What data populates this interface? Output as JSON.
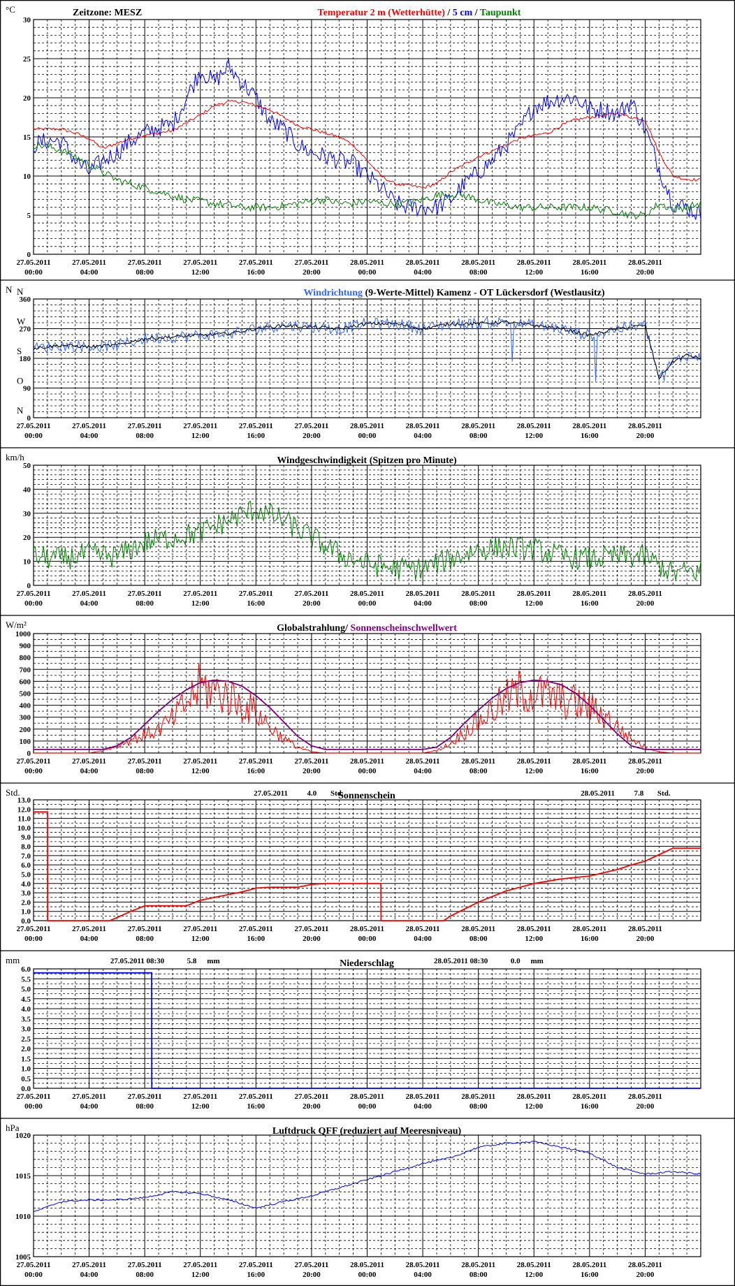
{
  "x_labels": [
    {
      "date": "27.05.2011",
      "time": "00:00"
    },
    {
      "date": "27.05.2011",
      "time": "04:00"
    },
    {
      "date": "27.05.2011",
      "time": "08:00"
    },
    {
      "date": "27.05.2011",
      "time": "12:00"
    },
    {
      "date": "27.05.2011",
      "time": "16:00"
    },
    {
      "date": "27.05.2011",
      "time": "20:00"
    },
    {
      "date": "28.05.2011",
      "time": "00:00"
    },
    {
      "date": "28.05.2011",
      "time": "04:00"
    },
    {
      "date": "28.05.2011",
      "time": "08:00"
    },
    {
      "date": "28.05.2011",
      "time": "12:00"
    },
    {
      "date": "28.05.2011",
      "time": "16:00"
    },
    {
      "date": "28.05.2011",
      "time": "20:00"
    }
  ],
  "colors": {
    "red": "#ff0000",
    "blue": "#0000ff",
    "lightblue": "#3366ff",
    "green": "#008000",
    "purple": "#800080",
    "black": "#000000"
  },
  "chart_data": [
    {
      "type": "line",
      "id": "temp",
      "unit": "°C",
      "zone": "Zeitzone: MESZ",
      "title_parts": [
        {
          "text": "Temperatur 2 m (Wetterhütte)",
          "color": "#ff0000"
        },
        {
          "text": " / ",
          "color": "#000000"
        },
        {
          "text": "5 cm",
          "color": "#0000ff"
        },
        {
          "text": " / ",
          "color": "#000000"
        },
        {
          "text": "Taupunkt",
          "color": "#008000"
        }
      ],
      "ylim": [
        0,
        30
      ],
      "yticks": [
        0,
        5,
        10,
        15,
        20,
        25,
        30
      ],
      "ytick_labels": [
        "0",
        "5",
        "10",
        "15",
        "20",
        "25",
        "30"
      ],
      "x_hours": [
        0,
        1,
        2,
        3,
        4,
        5,
        6,
        7,
        8,
        9,
        10,
        11,
        12,
        13,
        14,
        15,
        16,
        17,
        18,
        19,
        20,
        21,
        22,
        23,
        24,
        25,
        26,
        27,
        28,
        29,
        30,
        31,
        32,
        33,
        34,
        35,
        36,
        37,
        38,
        39,
        40,
        41,
        42,
        43,
        44,
        45,
        46,
        47,
        48
      ],
      "series": [
        {
          "color": "#ff0000",
          "noise": 0.2,
          "values": [
            16,
            16,
            16,
            15.5,
            14.8,
            13.5,
            14.2,
            14.8,
            15.2,
            15.5,
            15.8,
            16.8,
            17.8,
            19,
            19.5,
            19.5,
            19,
            18.5,
            17.5,
            16.5,
            16,
            15.5,
            15,
            14,
            12,
            10,
            9,
            8.8,
            8.5,
            9,
            10.5,
            11.5,
            12.5,
            13.2,
            14,
            14.8,
            15.2,
            15.5,
            16.5,
            17.2,
            17.5,
            17.8,
            18,
            17.5,
            17.2,
            13,
            10,
            9.6,
            9.5
          ]
        },
        {
          "color": "#0000ff",
          "noise": 1.2,
          "values": [
            14,
            14.5,
            14.5,
            12,
            10.5,
            12,
            13,
            14.5,
            15.5,
            16.2,
            16.5,
            20,
            23.5,
            22,
            24,
            22,
            20,
            17,
            16,
            14,
            13,
            12.5,
            12,
            11.5,
            10,
            8.5,
            6.5,
            6,
            6,
            6,
            7,
            9,
            10.5,
            12,
            14,
            16,
            19,
            19.5,
            20,
            20,
            18.5,
            18.5,
            18,
            19.5,
            16,
            11,
            6.5,
            6,
            5
          ]
        },
        {
          "color": "#008000",
          "noise": 0.5,
          "values": [
            14,
            13.8,
            13.3,
            12.5,
            11.5,
            10.5,
            9.5,
            9,
            8.5,
            8,
            7.5,
            7,
            6.8,
            6.5,
            6.3,
            6,
            6,
            6,
            6.2,
            6.5,
            6.8,
            7,
            6.5,
            6.5,
            6.8,
            6.5,
            6.5,
            6.5,
            7,
            7.5,
            7.7,
            7.5,
            7,
            6.5,
            6.3,
            6,
            6,
            6,
            6,
            6,
            6,
            5.7,
            5.5,
            5,
            5,
            6.5,
            5.8,
            6,
            6.5
          ]
        }
      ]
    },
    {
      "type": "line",
      "id": "dir",
      "unit": "N",
      "zone": "",
      "title_parts": [
        {
          "text": "Windrichtung",
          "color": "#3366ff"
        },
        {
          "text": " (9-Werte-Mittel)",
          "color": "#000000"
        },
        {
          "text": "          Kamenz - OT Lückersdorf (Westlausitz)",
          "color": "#000000"
        }
      ],
      "ylim": [
        0,
        360
      ],
      "yticks": [
        0,
        90,
        180,
        270,
        360
      ],
      "ytick_labels": [
        "0",
        "90",
        "180",
        "270",
        "360"
      ],
      "compass": [
        "N",
        "O",
        "S",
        "W",
        "N"
      ],
      "x_hours": [
        0,
        2,
        4,
        6,
        8,
        10,
        12,
        14,
        16,
        18,
        20,
        22,
        24,
        26,
        28,
        30,
        32,
        34,
        36,
        38,
        40,
        42,
        44,
        45,
        46,
        47,
        48
      ],
      "series": [
        {
          "color": "#3366ff",
          "noise": 18,
          "values": [
            210,
            220,
            215,
            220,
            240,
            245,
            250,
            255,
            270,
            280,
            275,
            270,
            285,
            285,
            270,
            285,
            285,
            290,
            280,
            270,
            250,
            270,
            280,
            120,
            170,
            190,
            180
          ]
        },
        {
          "color": "#000000",
          "noise": 5,
          "values": [
            210,
            220,
            215,
            220,
            240,
            245,
            250,
            255,
            270,
            280,
            275,
            270,
            285,
            285,
            270,
            285,
            285,
            290,
            280,
            270,
            250,
            270,
            280,
            120,
            170,
            190,
            180
          ]
        }
      ]
    },
    {
      "type": "line",
      "id": "speed",
      "unit": "km/h",
      "zone": "",
      "title_parts": [
        {
          "text": "Windgeschwindigkeit (Spitzen pro Minute)",
          "color": "#000000"
        }
      ],
      "ylim": [
        0,
        50
      ],
      "yticks": [
        0,
        10,
        20,
        30,
        40,
        50
      ],
      "ytick_labels": [
        "0",
        "10",
        "20",
        "30",
        "40",
        "50"
      ],
      "x_hours": [
        0,
        2,
        4,
        6,
        8,
        10,
        12,
        14,
        16,
        18,
        20,
        22,
        24,
        26,
        28,
        30,
        32,
        34,
        36,
        38,
        40,
        42,
        44,
        46,
        48
      ],
      "series": [
        {
          "color": "#008000",
          "noise": 5,
          "values": [
            12,
            11,
            13,
            12,
            18,
            20,
            22,
            27,
            32,
            27,
            20,
            13,
            9,
            7,
            7,
            11,
            15,
            16,
            15,
            12,
            11,
            12,
            12,
            5,
            6
          ]
        }
      ]
    },
    {
      "type": "line",
      "id": "rad",
      "unit": "W/m²",
      "zone": "",
      "title_parts": [
        {
          "text": "Globalstrahlung/ ",
          "color": "#000000"
        },
        {
          "text": "Sonnenscheinschwellwert",
          "color": "#800080"
        }
      ],
      "ylim": [
        0,
        1000
      ],
      "yticks": [
        0,
        100,
        200,
        300,
        400,
        500,
        600,
        700,
        800,
        900,
        1000
      ],
      "ytick_labels": [
        "0",
        "100",
        "200",
        "300",
        "400",
        "500",
        "600",
        "700",
        "800",
        "900",
        "1000"
      ],
      "x_hours": [
        0,
        2,
        4,
        5,
        6,
        7,
        8,
        9,
        10,
        11,
        12,
        13,
        14,
        15,
        16,
        17,
        18,
        19,
        20,
        21,
        22,
        24,
        26,
        28,
        29,
        30,
        31,
        32,
        33,
        34,
        35,
        36,
        37,
        38,
        39,
        40,
        41,
        42,
        43,
        44,
        45,
        46,
        48
      ],
      "series": [
        {
          "color": "#ff0000",
          "noise": 230,
          "values": [
            0,
            0,
            0,
            20,
            60,
            110,
            150,
            200,
            280,
            420,
            560,
            520,
            480,
            400,
            350,
            220,
            120,
            50,
            10,
            0,
            0,
            0,
            0,
            0,
            20,
            80,
            180,
            260,
            360,
            450,
            520,
            500,
            480,
            440,
            420,
            380,
            320,
            220,
            120,
            50,
            10,
            0,
            0
          ]
        },
        {
          "color": "#800080",
          "noise": 0,
          "values": [
            30,
            30,
            30,
            30,
            60,
            130,
            240,
            350,
            450,
            530,
            590,
            610,
            600,
            560,
            480,
            380,
            260,
            140,
            60,
            30,
            30,
            30,
            30,
            30,
            50,
            130,
            250,
            360,
            460,
            540,
            590,
            610,
            600,
            570,
            500,
            400,
            280,
            160,
            60,
            30,
            30,
            30,
            30
          ]
        }
      ]
    },
    {
      "type": "line",
      "id": "sun",
      "unit": "Std.",
      "zone": "",
      "title_parts": [
        {
          "text": "Sonnenschein",
          "color": "#000000"
        }
      ],
      "annotations": [
        {
          "text": "27.05.2011",
          "fx": 0.33
        },
        {
          "text": "4.0",
          "fx": 0.41
        },
        {
          "text": "Std.",
          "fx": 0.445
        },
        {
          "text": "28.05.2011",
          "fx": 0.82
        },
        {
          "text": "7.8",
          "fx": 0.9
        },
        {
          "text": "Std.",
          "fx": 0.935
        }
      ],
      "ylim": [
        0,
        13
      ],
      "yticks": [
        0,
        1,
        2,
        3,
        4,
        5,
        6,
        7,
        8,
        9,
        10,
        11,
        12,
        13
      ],
      "ytick_labels": [
        "0.0",
        "1.0",
        "2.0",
        "3.0",
        "4.0",
        "5.0",
        "6.0",
        "7.0",
        "8.0",
        "9.0",
        "10.0",
        "11.0",
        "12.0",
        "13.0"
      ],
      "x_hours": [
        0,
        1,
        1.01,
        5.5,
        7,
        8,
        11,
        12,
        13,
        14,
        15,
        16,
        17,
        19,
        20,
        21,
        23,
        24.99,
        25,
        29.5,
        30,
        32,
        34,
        36,
        38,
        40,
        42,
        43,
        44,
        45,
        46,
        48
      ],
      "series": [
        {
          "color": "#ff0000",
          "noise": 0,
          "values": [
            11.7,
            11.7,
            0,
            0,
            1,
            1.6,
            1.6,
            2.2,
            2.5,
            2.8,
            3.1,
            3.5,
            3.6,
            3.6,
            3.9,
            4,
            4,
            4,
            0,
            0,
            0.5,
            2,
            3.2,
            4,
            4.5,
            4.8,
            5.5,
            6,
            6.4,
            7.1,
            7.8,
            7.8
          ]
        }
      ]
    },
    {
      "type": "line",
      "id": "rain",
      "unit": "mm",
      "zone": "",
      "title_parts": [
        {
          "text": "Niederschlag",
          "color": "#000000"
        }
      ],
      "annotations": [
        {
          "text": "27.05.2011 08:30",
          "fx": 0.115
        },
        {
          "text": "5.8",
          "fx": 0.23
        },
        {
          "text": "mm",
          "fx": 0.26
        },
        {
          "text": "28.05.2011 08:30",
          "fx": 0.6
        },
        {
          "text": "0.0",
          "fx": 0.715
        },
        {
          "text": "mm",
          "fx": 0.745
        }
      ],
      "ylim": [
        0,
        6
      ],
      "yticks": [
        0,
        0.5,
        1,
        1.5,
        2,
        2.5,
        3,
        3.5,
        4,
        4.5,
        5,
        5.5,
        6
      ],
      "ytick_labels": [
        "0.0",
        "0.5",
        "1.0",
        "1.5",
        "2.0",
        "2.5",
        "3.0",
        "3.5",
        "4.0",
        "4.5",
        "5.0",
        "5.5",
        "6.0"
      ],
      "x_hours": [
        0,
        8.5,
        8.51,
        48
      ],
      "series": [
        {
          "color": "#0000ff",
          "noise": 0,
          "values": [
            5.8,
            5.8,
            0,
            0
          ]
        }
      ]
    },
    {
      "type": "line",
      "id": "press",
      "unit": "hPa",
      "zone": "",
      "title_parts": [
        {
          "text": "Luftdruck QFF (reduziert auf Meeresniveau)",
          "color": "#000000"
        }
      ],
      "ylim": [
        1005,
        1020
      ],
      "yticks": [
        1005,
        1010,
        1015,
        1020
      ],
      "ytick_labels": [
        "1005",
        "1010",
        "1015",
        "1020"
      ],
      "x_hours": [
        0,
        2,
        4,
        6,
        8,
        10,
        12,
        14,
        16,
        18,
        20,
        22,
        24,
        26,
        28,
        30,
        32,
        34,
        36,
        38,
        40,
        42,
        44,
        46,
        48
      ],
      "series": [
        {
          "color": "#0000ff",
          "noise": 0.1,
          "values": [
            1010.5,
            1011.8,
            1012,
            1012,
            1012.3,
            1013,
            1012.8,
            1012,
            1011,
            1011.8,
            1012.5,
            1013.5,
            1014.5,
            1015.5,
            1016.5,
            1017.2,
            1018.5,
            1019,
            1019.2,
            1018.5,
            1017.8,
            1016,
            1015.2,
            1015.5,
            1015.2
          ]
        }
      ]
    }
  ]
}
